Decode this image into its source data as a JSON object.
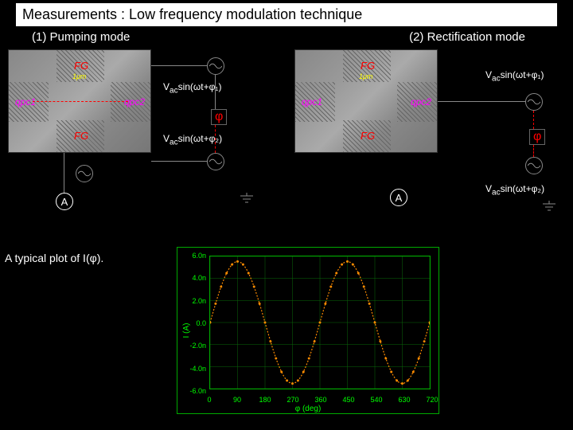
{
  "title": "Measurements : Low frequency modulation technique",
  "modes": {
    "m1": "(1) Pumping mode",
    "m2": "(2) Rectification mode"
  },
  "sem": {
    "fg": "FG",
    "scale": "1μm",
    "qpc1": "qpc1",
    "qpc2": "qpc2"
  },
  "signals": {
    "vac1": "V",
    "vac1_sub": "ac",
    "vac1_rest": "sin(ωt+φ₁)",
    "vac2_rest": "sin(ωt+φ₂)",
    "phase": "φ",
    "ammeter": "A"
  },
  "plot": {
    "label_pre": "A typical plot of I(",
    "label_mid": "φ",
    "label_post": ").",
    "ylabel_parts": [
      "I",
      " (A)"
    ],
    "xlabel": "φ (deg)",
    "yticks": [
      "6.0n",
      "4.0n",
      "2.0n",
      "0.0",
      "-2.0n",
      "-4.0n",
      "-6.0n"
    ],
    "xticks": [
      "0",
      "90",
      "180",
      "270",
      "360",
      "450",
      "540",
      "630",
      "720"
    ],
    "xlim": [
      0,
      720
    ],
    "ylim": [
      -6.5,
      6.5
    ],
    "curve_color": "#ff8c00",
    "grid_color": "#0a6b0a",
    "bg": "#000000",
    "amplitude": 6.0,
    "periods": 2
  }
}
